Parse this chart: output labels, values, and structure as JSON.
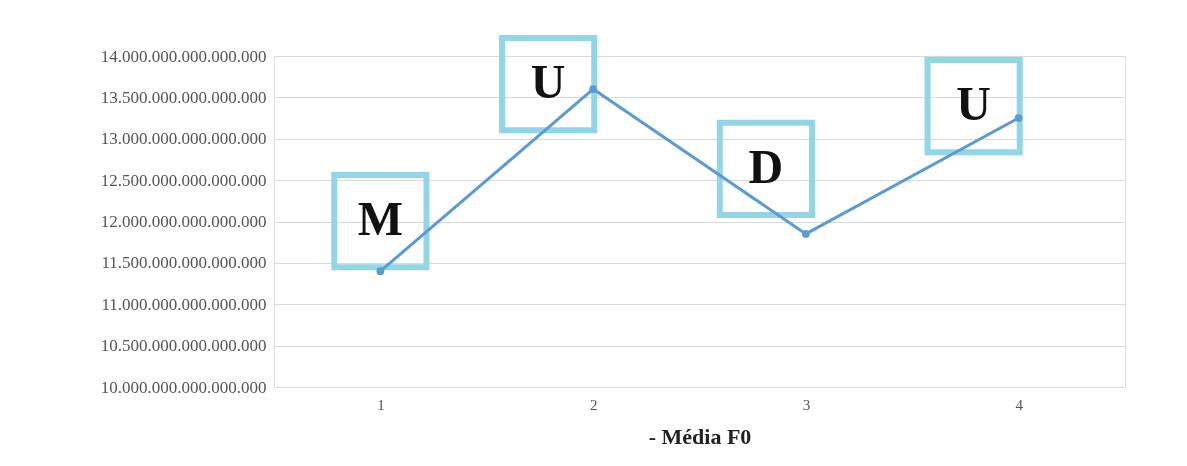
{
  "chart_data": {
    "type": "line",
    "xlabel": "- Média F0",
    "categories": [
      "1",
      "2",
      "3",
      "4"
    ],
    "series": [
      {
        "color": "#5b9bd5",
        "values": [
          11400000000000000,
          13600000000000000,
          11850000000000000,
          13250000000000000
        ]
      }
    ],
    "ylim": [
      10000000000000000,
      14000000000000000
    ],
    "yticks": [
      {
        "value": 10000000000000000,
        "label": "10.000.000.000.000.000"
      },
      {
        "value": 10500000000000000,
        "label": "10.500.000.000.000.000"
      },
      {
        "value": 11000000000000000,
        "label": "11.000.000.000.000.000"
      },
      {
        "value": 11500000000000000,
        "label": "11.500.000.000.000.000"
      },
      {
        "value": 12000000000000000,
        "label": "12.000.000.000.000.000"
      },
      {
        "value": 12500000000000000,
        "label": "12.500.000.000.000.000"
      },
      {
        "value": 13000000000000000,
        "label": "13.000.000.000.000.000"
      },
      {
        "value": 13500000000000000,
        "label": "13.500.000.000.000.000"
      },
      {
        "value": 14000000000000000,
        "label": "14.000.000.000.000.000"
      }
    ],
    "annotations": [
      "M",
      "U",
      "D",
      "U"
    ],
    "grid": "y",
    "marker": "circle",
    "line_style": "solid"
  }
}
